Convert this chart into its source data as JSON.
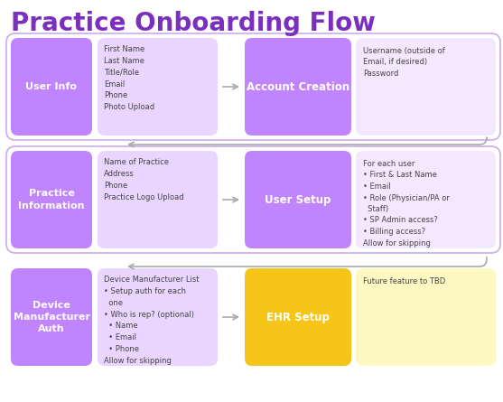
{
  "title": "Practice Onboarding Flow",
  "title_color": "#7B2FBE",
  "title_fontsize": 20,
  "bg_color": "#ffffff",
  "text_dark": "#444444",
  "arrow_color": "#aaaaaa",
  "rows": [
    {
      "left_label": "User Info",
      "left_color": "#C084FC",
      "middle_text": "First Name\nLast Name\nTitle/Role\nEmail\nPhone\nPhoto Upload",
      "middle_color": "#E9D5FF",
      "right_label": "Account Creation",
      "right_color": "#C084FC",
      "far_right_text": "Username (outside of\nEmail, if desired)\nPassword",
      "far_right_color": "#F3E8FF",
      "has_outer_box": true,
      "right_label_color": "#ffffff",
      "right_text_style": "normal"
    },
    {
      "left_label": "Practice\nInformation",
      "left_color": "#C084FC",
      "middle_text": "Name of Practice\nAddress\nPhone\nPractice Logo Upload",
      "middle_color": "#E9D5FF",
      "right_label": "User Setup",
      "right_color": "#C084FC",
      "far_right_text": "For each user\n• First & Last Name\n• Email\n• Role (Physician/PA or\n  Staff)\n• SP Admin access?\n• Billing access?\nAllow for skipping",
      "far_right_color": "#F3E8FF",
      "has_outer_box": true,
      "right_label_color": "#ffffff",
      "right_text_style": "normal"
    },
    {
      "left_label": "Device\nManufacturer\nAuth",
      "left_color": "#C084FC",
      "middle_text": "Device Manufacturer List\n• Setup auth for each\n  one\n• Who is rep? (optional)\n  • Name\n  • Email\n  • Phone\nAllow for skipping",
      "middle_color": "#E9D5FF",
      "right_label": "EHR Setup",
      "right_color": "#F5C518",
      "far_right_text": "Future feature to TBD",
      "far_right_color": "#FEF9C3",
      "has_outer_box": false,
      "right_label_color": "#ffffff",
      "right_text_style": "normal"
    }
  ]
}
